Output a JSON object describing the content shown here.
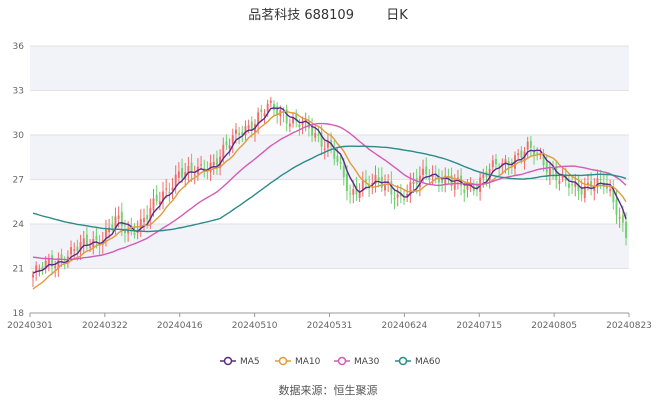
{
  "title": "品茗科技 688109",
  "period_label": "日K",
  "source": "数据来源：恒生聚源",
  "colors": {
    "up": "#f06b6b",
    "down": "#6fd16f",
    "ma5": "#5b2a86",
    "ma10": "#e39a3a",
    "ma30": "#d45bb6",
    "ma60": "#2b8a8a"
  },
  "chart_data": {
    "type": "candlestick",
    "y_ticks": [
      "18",
      "21",
      "24",
      "27",
      "30",
      "33",
      "36"
    ],
    "ylim": [
      18,
      36
    ],
    "x_tick_labels": [
      "20240301",
      "20240322",
      "20240416",
      "20240510",
      "20240531",
      "20240624",
      "20240715",
      "20240805",
      "20240823"
    ],
    "legend": [
      "MA5",
      "MA10",
      "MA30",
      "MA60"
    ],
    "legend_position": "bottom",
    "grid": true
  }
}
